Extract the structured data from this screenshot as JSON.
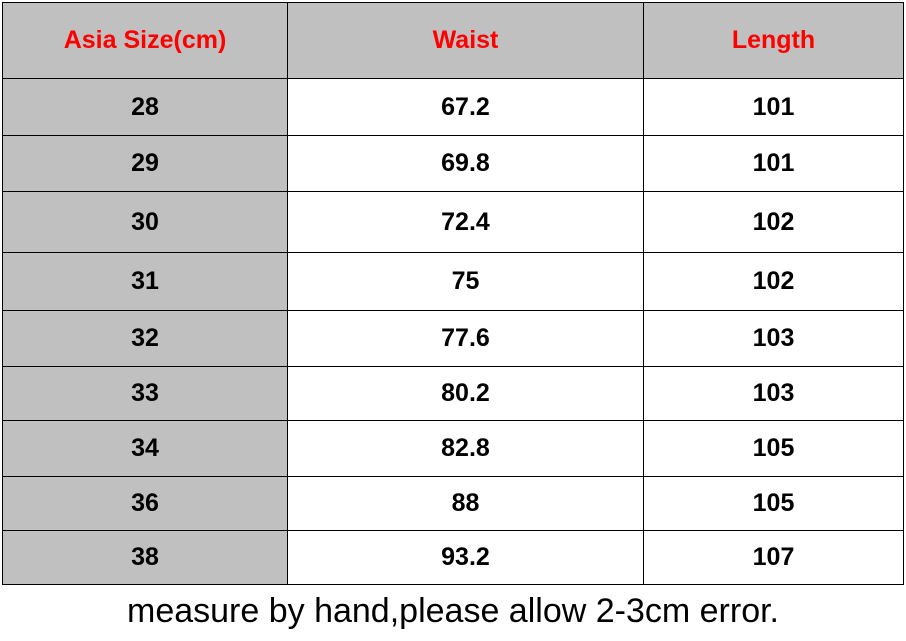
{
  "chart_data": {
    "type": "table",
    "header_color": "#ff0000",
    "header_bg": "#c0c0c0",
    "columns": [
      "Asia Size(cm)",
      "Waist",
      "Length"
    ],
    "rows": [
      [
        "28",
        "67.2",
        "101"
      ],
      [
        "29",
        "69.8",
        "101"
      ],
      [
        "30",
        "72.4",
        "102"
      ],
      [
        "31",
        "75",
        "102"
      ],
      [
        "32",
        "77.6",
        "103"
      ],
      [
        "33",
        "80.2",
        "103"
      ],
      [
        "34",
        "82.8",
        "105"
      ],
      [
        "36",
        "88",
        "105"
      ],
      [
        "38",
        "93.2",
        "107"
      ]
    ]
  },
  "note": "measure by hand,please allow 2-3cm error."
}
